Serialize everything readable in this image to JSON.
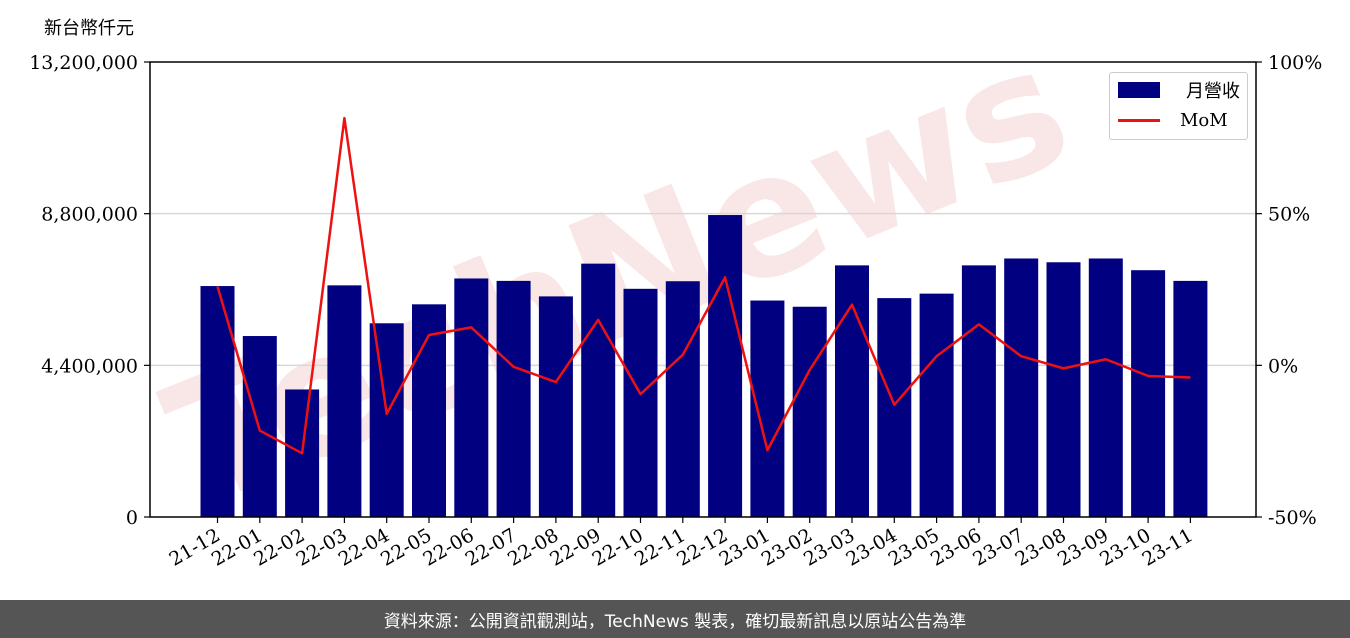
{
  "footer": {
    "source_text": "資料來源：公開資訊觀測站，TechNews 製表，確切最新訊息以原站公告為準"
  },
  "watermark": {
    "text": "TechNews",
    "color": "#e8a0a0"
  },
  "chart_data": {
    "type": "bar",
    "categories": [
      "21-12",
      "22-01",
      "22-02",
      "22-03",
      "22-04",
      "22-05",
      "22-06",
      "22-07",
      "22-08",
      "22-09",
      "22-10",
      "22-11",
      "22-12",
      "23-01",
      "23-02",
      "23-03",
      "23-04",
      "23-05",
      "23-06",
      "23-07",
      "23-08",
      "23-09",
      "23-10",
      "23-11"
    ],
    "series": [
      {
        "name": "月營收",
        "axis": "left",
        "kind": "bar",
        "color": "#000080",
        "values": [
          6700000,
          5250000,
          3700000,
          6720000,
          5620000,
          6170000,
          6920000,
          6850000,
          6400000,
          7350000,
          6620000,
          6840000,
          8760000,
          6280000,
          6100000,
          7300000,
          6350000,
          6480000,
          7300000,
          7500000,
          7390000,
          7500000,
          7160000,
          6850000
        ]
      },
      {
        "name": "MoM",
        "axis": "right",
        "kind": "line",
        "color": "#ee1111",
        "values": [
          26,
          -21.5,
          -29,
          81.5,
          -16,
          10,
          12.5,
          -0.5,
          -5.5,
          15,
          -9.5,
          3.5,
          29,
          -28,
          -1.5,
          20,
          -13,
          3,
          13.5,
          3,
          -1,
          2,
          -3.5,
          -4
        ]
      }
    ],
    "ylabel_left": "新台幣仟元",
    "ylim_left": [
      0,
      13200000
    ],
    "yticks_left": [
      "0",
      "4,400,000",
      "8,800,000",
      "13,200,000"
    ],
    "ylim_right": [
      -50,
      100
    ],
    "yticks_right": [
      "-50%",
      "0%",
      "50%",
      "100%"
    ],
    "grid": true,
    "legend_position": "top-right"
  }
}
